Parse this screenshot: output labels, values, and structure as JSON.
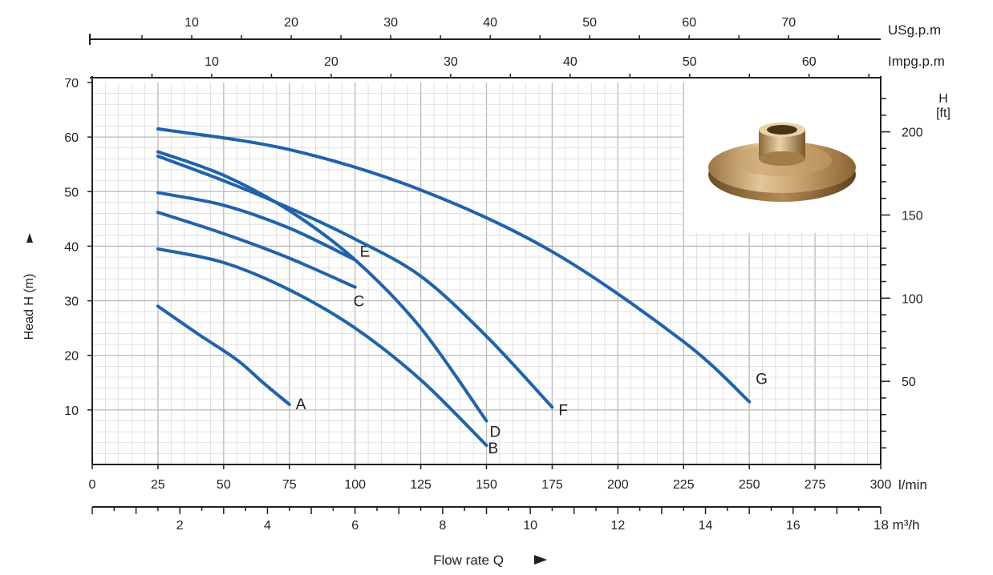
{
  "chart_data": {
    "type": "line",
    "title": "",
    "xlabel": "Flow rate Q",
    "ylabel": "Head H (m)",
    "x_unit": "l/min",
    "xlim": [
      0,
      300
    ],
    "ylim": [
      0,
      70
    ],
    "x_ticks": [
      0,
      25,
      50,
      75,
      100,
      125,
      150,
      175,
      200,
      225,
      250,
      275,
      300
    ],
    "y_ticks": [
      10,
      20,
      30,
      40,
      50,
      60,
      70
    ],
    "grid": true,
    "secondary_axes": {
      "right": {
        "label_line1": "H",
        "label_line2": "[ft]",
        "ticks": [
          50,
          100,
          150,
          200
        ],
        "factor_per_m": 3.28084
      },
      "top_usgpm": {
        "unit": "USg.p.m",
        "ticks": [
          10,
          20,
          30,
          40,
          50,
          60,
          70
        ],
        "lpm_per_unit": 3.78541
      },
      "top_impgpm": {
        "unit": "Impg.p.m",
        "ticks": [
          10,
          20,
          30,
          40,
          50,
          60
        ],
        "lpm_per_unit": 4.54609
      },
      "bottom_m3h": {
        "unit": "18 m³/h",
        "ticks": [
          2,
          4,
          6,
          8,
          10,
          12,
          14,
          16
        ],
        "end_value": 18,
        "lpm_per_unit": 16.6667
      }
    },
    "series": [
      {
        "name": "A",
        "color": "#1f63ad",
        "points": [
          [
            25,
            29
          ],
          [
            40,
            24
          ],
          [
            55,
            19.2
          ],
          [
            65,
            15
          ],
          [
            75,
            11
          ]
        ]
      },
      {
        "name": "B",
        "color": "#1f63ad",
        "points": [
          [
            25,
            39.5
          ],
          [
            50,
            37
          ],
          [
            75,
            32
          ],
          [
            100,
            25
          ],
          [
            125,
            15.5
          ],
          [
            150,
            3.5
          ]
        ]
      },
      {
        "name": "C",
        "color": "#1f63ad",
        "points": [
          [
            25,
            46.2
          ],
          [
            50,
            42.3
          ],
          [
            75,
            37.8
          ],
          [
            100,
            32.5
          ]
        ]
      },
      {
        "name": "D",
        "color": "#1f63ad",
        "points": [
          [
            25,
            57.3
          ],
          [
            50,
            53
          ],
          [
            75,
            46.5
          ],
          [
            100,
            37.5
          ],
          [
            125,
            25
          ],
          [
            150,
            8
          ]
        ]
      },
      {
        "name": "E",
        "color": "#1f63ad",
        "points": [
          [
            25,
            49.8
          ],
          [
            50,
            47.5
          ],
          [
            75,
            43.3
          ],
          [
            100,
            37.5
          ]
        ]
      },
      {
        "name": "F",
        "color": "#1f63ad",
        "points": [
          [
            25,
            56.5
          ],
          [
            50,
            52
          ],
          [
            75,
            47
          ],
          [
            100,
            41.3
          ],
          [
            125,
            34.5
          ],
          [
            150,
            23.5
          ],
          [
            175,
            10.5
          ]
        ]
      },
      {
        "name": "G",
        "color": "#1f63ad",
        "points": [
          [
            25,
            61.5
          ],
          [
            75,
            57.7
          ],
          [
            125,
            50.3
          ],
          [
            175,
            39
          ],
          [
            225,
            22.5
          ],
          [
            250,
            11.5
          ]
        ]
      }
    ],
    "image_inset": "bronze-impeller-photo"
  }
}
